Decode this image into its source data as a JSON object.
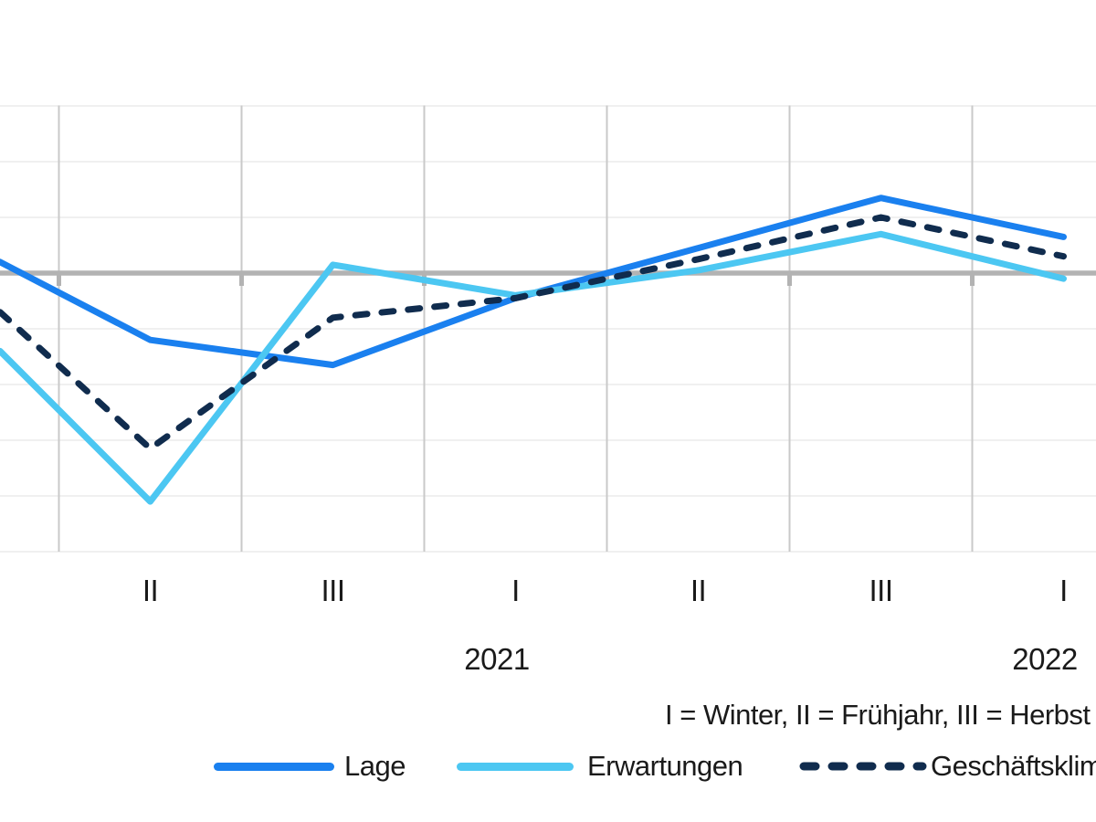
{
  "chart_data": {
    "type": "line",
    "title": "",
    "categories": [
      "II",
      "III",
      "I",
      "II",
      "III",
      "I"
    ],
    "category_years": [
      {
        "index": 2,
        "label": "2021"
      },
      {
        "index": 5,
        "label": "2022"
      }
    ],
    "series": [
      {
        "name": "Lage",
        "color": "#1a80ef",
        "style": "solid",
        "left_edge_entry_value": 2,
        "values": [
          -12,
          -16.5,
          -4.5,
          4.5,
          13.5,
          6.5
        ]
      },
      {
        "name": "Erwartungen",
        "color": "#4cc7f2",
        "style": "solid",
        "left_edge_entry_value": -14,
        "values": [
          -41,
          1.5,
          -4,
          0.5,
          7,
          -1
        ]
      },
      {
        "name": "Geschäftsklima",
        "color": "#102c4e",
        "style": "dashed",
        "left_edge_entry_value": -7,
        "values": [
          -31.5,
          -8,
          -4.5,
          2.5,
          10,
          3
        ]
      }
    ],
    "ylim": [
      -50,
      30
    ],
    "y_grid_step": 10,
    "zero_line": true,
    "grid": true,
    "legend_position": "bottom",
    "note": "I = Winter, II = Frühjahr, III = Herbst"
  }
}
